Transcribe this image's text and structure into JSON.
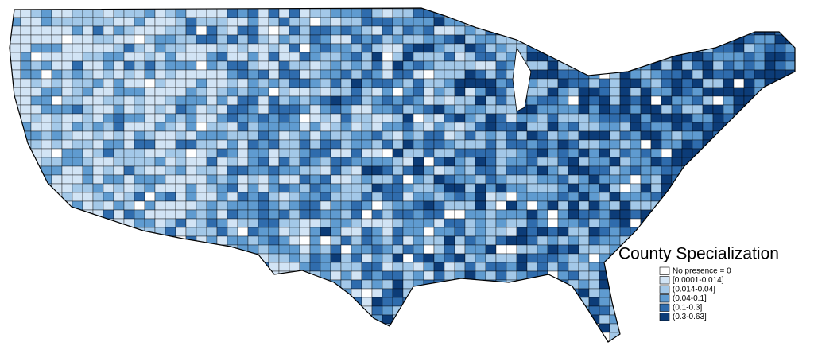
{
  "legend": {
    "title": "County Specialization",
    "items": [
      {
        "label": "No presence = 0",
        "color": "#ffffff"
      },
      {
        "label": "[0.0001-0.014]",
        "color": "#d2e4f5"
      },
      {
        "label": "(0.014-0.04]",
        "color": "#a3c8e8"
      },
      {
        "label": "(0.04-0.1]",
        "color": "#5f9bd0"
      },
      {
        "label": "(0.1-0.3]",
        "color": "#2f6cad"
      },
      {
        "label": "(0.3-0.63]",
        "color": "#0c3c78"
      }
    ]
  }
}
